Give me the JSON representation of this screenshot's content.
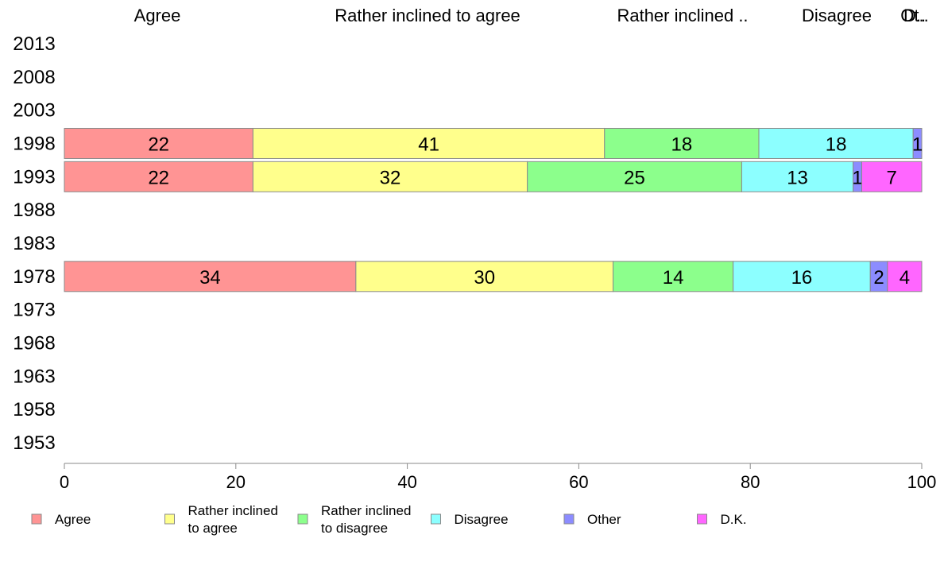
{
  "chart_data": {
    "type": "bar",
    "orientation": "horizontal",
    "stacked": true,
    "categories": [
      "2013",
      "2008",
      "2003",
      "1998",
      "1993",
      "1988",
      "1983",
      "1978",
      "1973",
      "1968",
      "1963",
      "1958",
      "1953"
    ],
    "series": [
      {
        "name": "Agree",
        "color": "#ff9494",
        "values": [
          null,
          null,
          null,
          22,
          22,
          null,
          null,
          34,
          null,
          null,
          null,
          null,
          null
        ]
      },
      {
        "name": "Rather inclined to agree",
        "color": "#ffff8c",
        "values": [
          null,
          null,
          null,
          41,
          32,
          null,
          null,
          30,
          null,
          null,
          null,
          null,
          null
        ]
      },
      {
        "name": "Rather inclined to disagree",
        "color": "#8cff8c",
        "values": [
          null,
          null,
          null,
          18,
          25,
          null,
          null,
          14,
          null,
          null,
          null,
          null,
          null
        ]
      },
      {
        "name": "Disagree",
        "color": "#8cffff",
        "values": [
          null,
          null,
          null,
          18,
          13,
          null,
          null,
          16,
          null,
          null,
          null,
          null,
          null
        ]
      },
      {
        "name": "Other",
        "color": "#8c8cff",
        "values": [
          null,
          null,
          null,
          1,
          1,
          null,
          null,
          2,
          null,
          null,
          null,
          null,
          null
        ]
      },
      {
        "name": "D.K.",
        "color": "#ff66ff",
        "values": [
          null,
          null,
          null,
          null,
          7,
          null,
          null,
          4,
          null,
          null,
          null,
          null,
          null
        ]
      }
    ],
    "x_ticks": [
      0,
      20,
      40,
      60,
      80,
      100
    ],
    "xlim": [
      0,
      100
    ],
    "top_labels": [
      "Agree",
      "Rather inclined to agree",
      "Rather inclined ..",
      "Disagree",
      "Ot..",
      "D.."
    ],
    "legend": {
      "position": "bottom",
      "items": [
        {
          "lines": [
            "Agree"
          ],
          "color": "#ff9494"
        },
        {
          "lines": [
            "Rather inclined",
            "to agree"
          ],
          "color": "#ffff8c"
        },
        {
          "lines": [
            "Rather inclined",
            "to disagree"
          ],
          "color": "#8cff8c"
        },
        {
          "lines": [
            "Disagree"
          ],
          "color": "#8cffff"
        },
        {
          "lines": [
            "Other"
          ],
          "color": "#8c8cff"
        },
        {
          "lines": [
            "D.K."
          ],
          "color": "#ff66ff"
        }
      ]
    }
  }
}
